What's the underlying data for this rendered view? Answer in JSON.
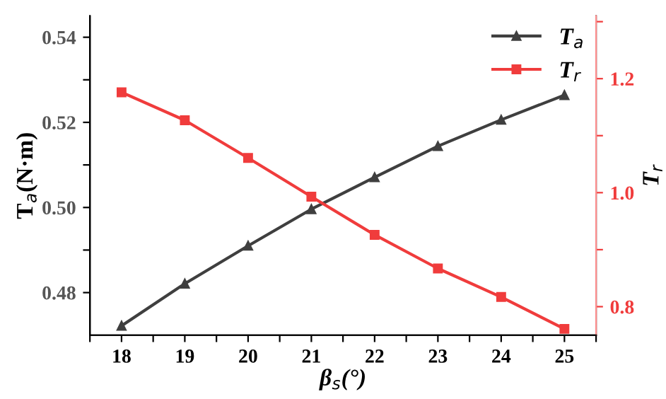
{
  "chart_data": {
    "type": "line",
    "xlabel": "β$_{s}$(°)",
    "ylabel": "T$_{a}$(N·m)",
    "y2label": "T$_{r}$",
    "x": [
      18,
      19,
      20,
      21,
      22,
      23,
      24,
      25
    ],
    "series": [
      {
        "name": "T$_{a}$",
        "color": "#3f3f3f",
        "marker": "triangle",
        "values": [
          0.4722,
          0.4821,
          0.491,
          0.4996,
          0.5071,
          0.5144,
          0.5206,
          0.5264
        ]
      },
      {
        "name": "T$_{r}$",
        "color": "#f03c3c",
        "marker": "square",
        "axis": "y2",
        "values": [
          1.176,
          1.127,
          1.061,
          0.993,
          0.926,
          0.867,
          0.817,
          0.761
        ]
      }
    ],
    "xlim": [
      17.5,
      25.5
    ],
    "xticks": [
      {
        "value": 17.5,
        "label": null
      },
      18,
      {
        "value": 18.5,
        "label": null
      },
      19,
      {
        "value": 19.5,
        "label": null
      },
      20,
      {
        "value": 20.5,
        "label": null
      },
      21,
      {
        "value": 21.5,
        "label": null
      },
      22,
      {
        "value": 22.5,
        "label": null
      },
      23,
      {
        "value": 23.5,
        "label": null
      },
      24,
      {
        "value": 24.5,
        "label": null
      },
      25,
      {
        "value": 25.5,
        "label": null
      }
    ],
    "ylim": [
      0.47,
      0.545
    ],
    "yticks": [
      0.48,
      {
        "value": 0.49,
        "label": null
      },
      {
        "value": 0.5,
        "label": "0.50"
      },
      {
        "value": 0.51,
        "label": null
      },
      0.52,
      {
        "value": 0.53,
        "label": null
      },
      0.54
    ],
    "y2lim": [
      0.75,
      1.31
    ],
    "y2ticks": [
      0.8,
      {
        "value": 0.9,
        "label": null
      },
      {
        "value": 1.0,
        "label": "1.0"
      },
      {
        "value": 1.1,
        "label": null
      },
      1.2,
      {
        "value": 1.3,
        "label": null
      }
    ],
    "legend": "top right",
    "grid": false
  }
}
